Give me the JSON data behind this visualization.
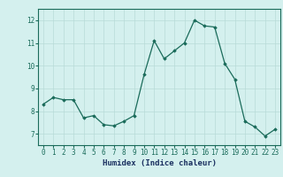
{
  "x": [
    0,
    1,
    2,
    3,
    4,
    5,
    6,
    7,
    8,
    9,
    10,
    11,
    12,
    13,
    14,
    15,
    16,
    17,
    18,
    19,
    20,
    21,
    22,
    23
  ],
  "y": [
    8.3,
    8.6,
    8.5,
    8.5,
    7.7,
    7.8,
    7.4,
    7.35,
    7.55,
    7.8,
    9.6,
    11.1,
    10.3,
    10.65,
    11.0,
    12.0,
    11.75,
    11.7,
    10.1,
    9.4,
    7.55,
    7.3,
    6.9,
    7.2
  ],
  "line_color": "#1a6b5a",
  "marker": "D",
  "marker_size": 1.8,
  "background_color": "#d4f0ee",
  "grid_color": "#b8dbd8",
  "tick_color": "#1a6b5a",
  "xlabel": "Humidex (Indice chaleur)",
  "xlabel_fontsize": 6.5,
  "xlabel_color": "#1a3060",
  "ylim": [
    6.5,
    12.5
  ],
  "yticks": [
    7,
    8,
    9,
    10,
    11,
    12
  ],
  "xticks": [
    0,
    1,
    2,
    3,
    4,
    5,
    6,
    7,
    8,
    9,
    10,
    11,
    12,
    13,
    14,
    15,
    16,
    17,
    18,
    19,
    20,
    21,
    22,
    23
  ],
  "tick_fontsize": 5.5,
  "linewidth": 0.9
}
